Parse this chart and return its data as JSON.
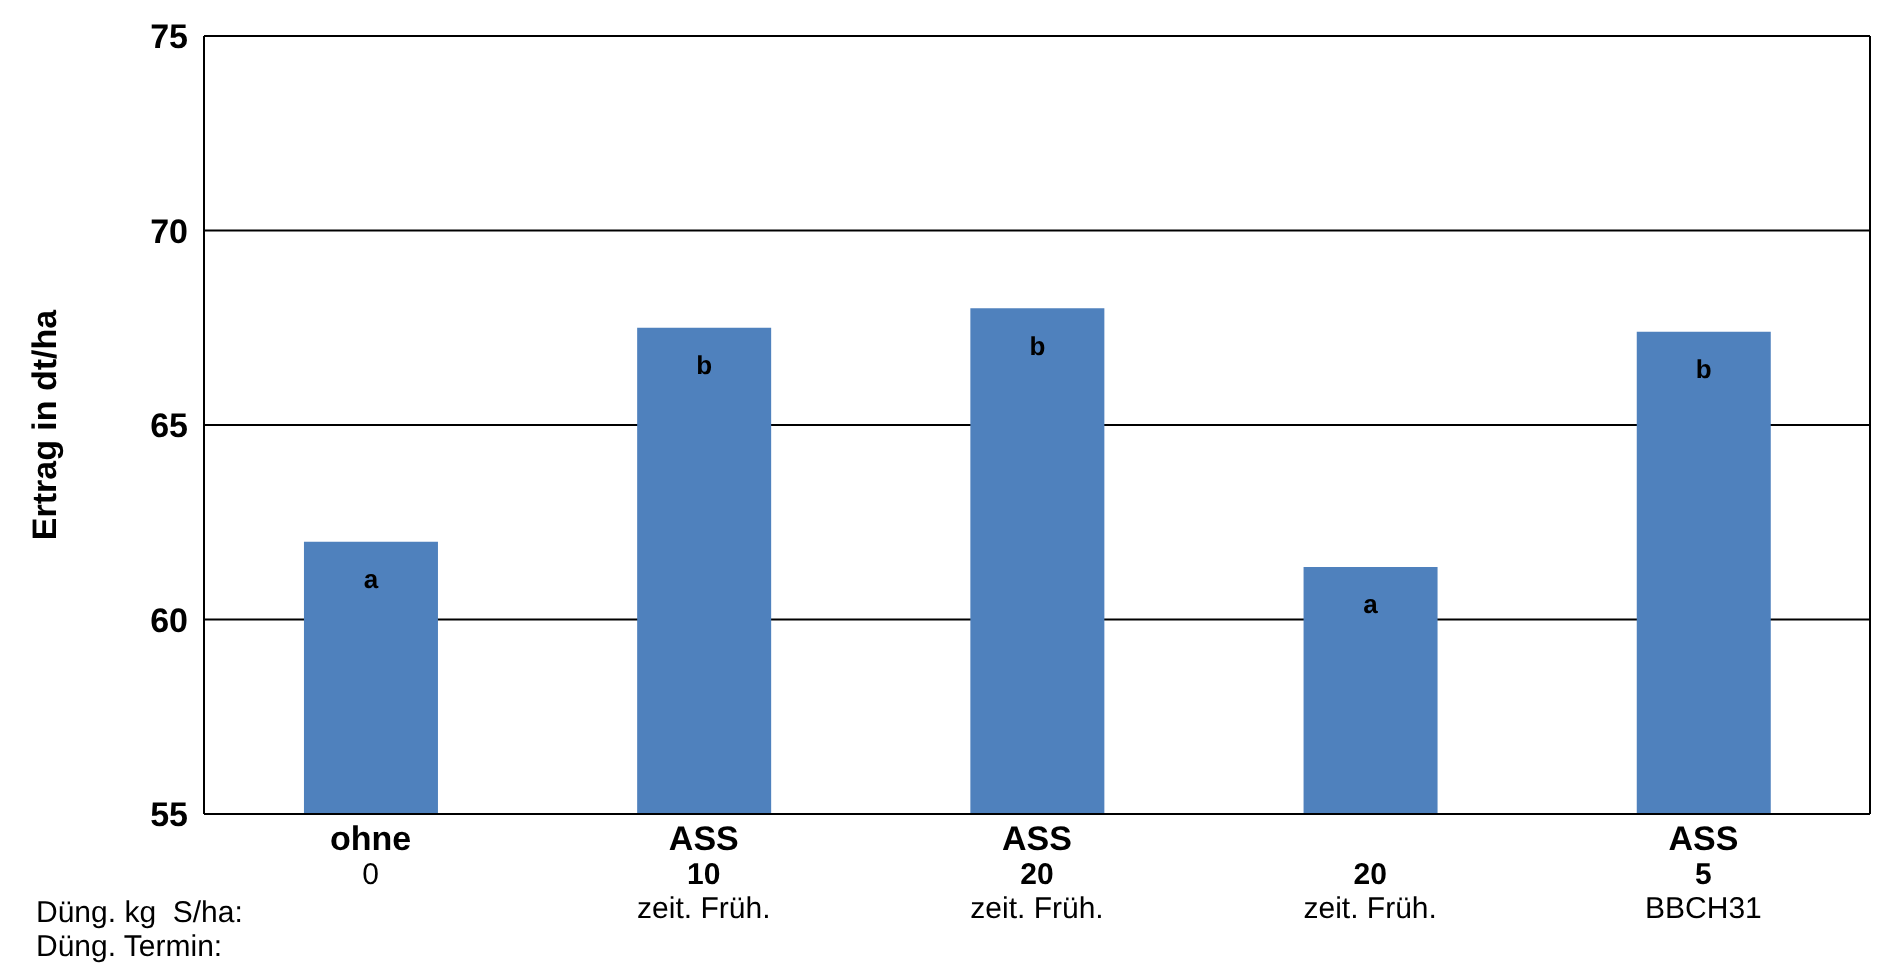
{
  "chart_data": {
    "type": "bar",
    "ylabel": "Ertrag in dt/ha",
    "categories": [
      "ohne\n0",
      "ASS\n10\nzeit. Früh.",
      "ASS\n20\nzeit. Früh.",
      "\n20\nzeit. Früh.",
      "ASS\n5\nBBCH31"
    ],
    "values": [
      62.0,
      67.5,
      68.0,
      61.35,
      67.4
    ],
    "value_labels": [
      "a",
      "b",
      "b",
      "a",
      "b"
    ],
    "color": "#4f81bd",
    "ylim": [
      55,
      75
    ],
    "yticks": [
      55,
      60,
      65,
      70,
      75
    ],
    "grid": "y",
    "legend": false,
    "annotations": [
      "Düng. kg  S/ha:",
      "Düng. Termin:"
    ]
  }
}
